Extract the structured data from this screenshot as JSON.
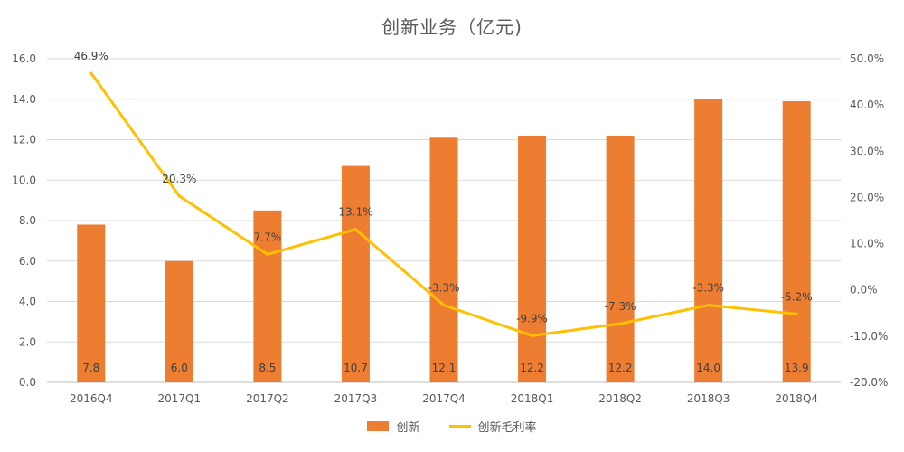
{
  "chart_data": {
    "type": "bar",
    "title": "创新业务（亿元)",
    "categories": [
      "2016Q4",
      "2017Q1",
      "2017Q2",
      "2017Q3",
      "2017Q4",
      "2018Q1",
      "2018Q2",
      "2018Q3",
      "2018Q4"
    ],
    "series": [
      {
        "name": "创新",
        "type": "bar",
        "axis": "left",
        "color": "#ED7D31",
        "values": [
          7.8,
          6.0,
          8.5,
          10.7,
          12.1,
          12.2,
          12.2,
          14.0,
          13.9
        ],
        "labels": [
          "7.8",
          "6.0",
          "8.5",
          "10.7",
          "12.1",
          "12.2",
          "12.2",
          "14.0",
          "13.9"
        ]
      },
      {
        "name": "创新毛利率",
        "type": "line",
        "axis": "right",
        "color": "#FFC000",
        "values": [
          46.9,
          20.3,
          7.7,
          13.1,
          -3.3,
          -9.9,
          -7.3,
          -3.3,
          -5.2
        ],
        "labels": [
          "46.9%",
          "20.3%",
          "7.7%",
          "13.1%",
          "-3.3%",
          "-9.9%",
          "-7.3%",
          "-3.3%",
          "-5.2%"
        ]
      }
    ],
    "y_left": {
      "min": 0,
      "max": 16,
      "step": 2,
      "tick_labels": [
        "0.0",
        "2.0",
        "4.0",
        "6.0",
        "8.0",
        "10.0",
        "12.0",
        "14.0",
        "16.0"
      ]
    },
    "y_right": {
      "min": -20,
      "max": 50,
      "step": 10,
      "tick_labels": [
        "-20.0%",
        "-10.0%",
        "0.0%",
        "10.0%",
        "20.0%",
        "30.0%",
        "40.0%",
        "50.0%"
      ]
    },
    "grid": true,
    "legend_position": "bottom"
  }
}
